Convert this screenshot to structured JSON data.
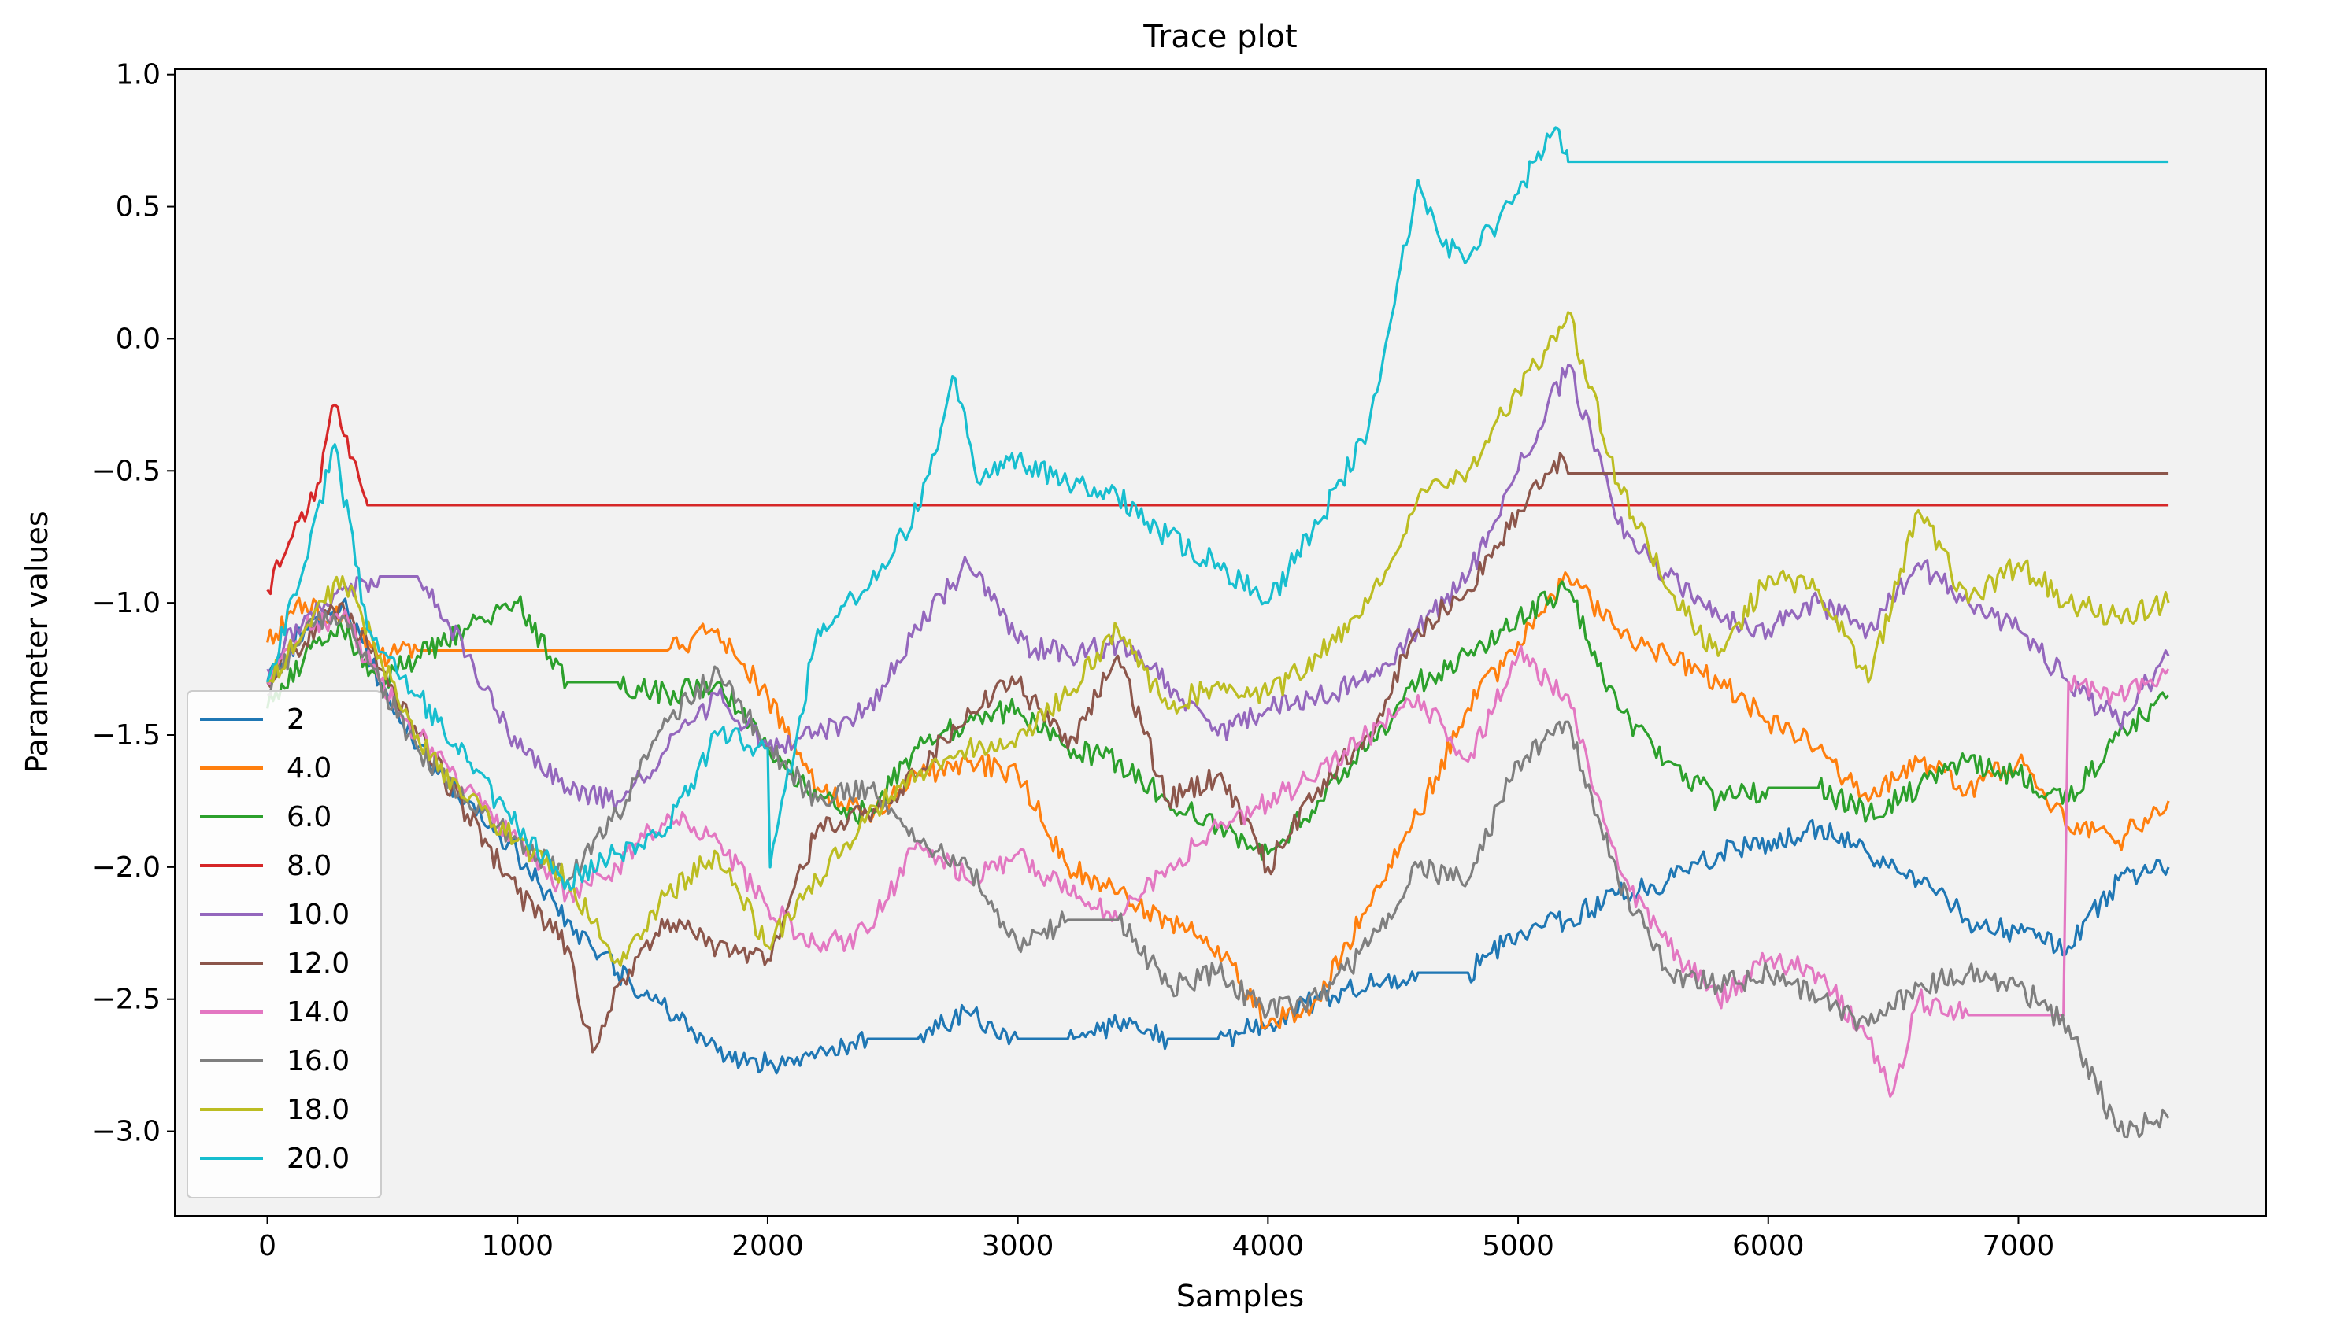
{
  "chart_data": {
    "type": "line",
    "title": "Trace plot",
    "xlabel": "Samples",
    "ylabel": "Parameter values",
    "xlim": [
      -370,
      7990
    ],
    "ylim": [
      -3.32,
      1.02
    ],
    "xticks": [
      0,
      1000,
      2000,
      3000,
      4000,
      5000,
      6000,
      7000
    ],
    "yticks": [
      1.0,
      0.5,
      0.0,
      -0.5,
      -1.0,
      -1.5,
      -2.0,
      -2.5,
      -3.0
    ],
    "xtick_labels": [
      "0",
      "1000",
      "2000",
      "3000",
      "4000",
      "5000",
      "6000",
      "7000"
    ],
    "ytick_labels": [
      "1.0",
      "0.5",
      "0.0",
      "−0.5",
      "−1.0",
      "−1.5",
      "−2.0",
      "−2.5",
      "−3.0"
    ],
    "grid": false,
    "background": "#f2f2f2",
    "legend_position": "lower-left",
    "series": [
      {
        "name": "2",
        "color": "#1f77b4",
        "x": [
          0,
          150,
          300,
          450,
          600,
          800,
          1000,
          1200,
          1400,
          1600,
          1800,
          2000,
          2200,
          2400,
          2600,
          2800,
          3000,
          3200,
          3400,
          3600,
          3800,
          4000,
          4200,
          4400,
          4600,
          4800,
          5000,
          5200,
          5400,
          5600,
          5800,
          6000,
          6200,
          6400,
          6600,
          6800,
          7000,
          7200,
          7400,
          7600
        ],
        "y": [
          -1.3,
          -1.1,
          -1.0,
          -1.3,
          -1.55,
          -1.75,
          -1.95,
          -2.2,
          -2.4,
          -2.55,
          -2.7,
          -2.75,
          -2.7,
          -2.65,
          -2.65,
          -2.55,
          -2.65,
          -2.65,
          -2.6,
          -2.65,
          -2.65,
          -2.6,
          -2.5,
          -2.45,
          -2.4,
          -2.4,
          -2.25,
          -2.2,
          -2.1,
          -2.05,
          -1.95,
          -1.9,
          -1.85,
          -1.95,
          -2.05,
          -2.2,
          -2.25,
          -2.3,
          -2.05,
          -2.0
        ]
      },
      {
        "name": "4.0",
        "color": "#ff7f0e",
        "x": [
          0,
          150,
          300,
          450,
          600,
          800,
          1000,
          1200,
          1400,
          1600,
          1800,
          2000,
          2200,
          2400,
          2600,
          2800,
          3000,
          3200,
          3400,
          3600,
          3800,
          4000,
          4200,
          4400,
          4600,
          4800,
          5000,
          5200,
          5400,
          5600,
          5800,
          6000,
          6200,
          6400,
          6600,
          6800,
          7000,
          7200,
          7400,
          7600
        ],
        "y": [
          -1.15,
          -1.0,
          -1.05,
          -1.2,
          -1.18,
          -1.18,
          -1.18,
          -1.18,
          -1.18,
          -1.18,
          -1.1,
          -1.35,
          -1.7,
          -1.8,
          -1.65,
          -1.6,
          -1.65,
          -2.0,
          -2.1,
          -2.2,
          -2.3,
          -2.6,
          -2.5,
          -2.15,
          -1.8,
          -1.4,
          -1.15,
          -0.9,
          -1.1,
          -1.2,
          -1.3,
          -1.45,
          -1.55,
          -1.75,
          -1.6,
          -1.7,
          -1.6,
          -1.85,
          -1.9,
          -1.75
        ]
      },
      {
        "name": "6.0",
        "color": "#2ca02c",
        "x": [
          0,
          150,
          300,
          450,
          600,
          800,
          1000,
          1200,
          1400,
          1600,
          1800,
          2000,
          2200,
          2400,
          2600,
          2800,
          3000,
          3200,
          3400,
          3600,
          3800,
          4000,
          4200,
          4400,
          4600,
          4800,
          5000,
          5200,
          5400,
          5600,
          5800,
          6000,
          6200,
          6400,
          6600,
          6800,
          7000,
          7200,
          7400,
          7600
        ],
        "y": [
          -1.4,
          -1.2,
          -1.1,
          -1.3,
          -1.2,
          -1.1,
          -1.0,
          -1.3,
          -1.3,
          -1.35,
          -1.3,
          -1.55,
          -1.75,
          -1.8,
          -1.55,
          -1.45,
          -1.4,
          -1.55,
          -1.6,
          -1.75,
          -1.85,
          -1.95,
          -1.75,
          -1.55,
          -1.3,
          -1.2,
          -1.05,
          -0.95,
          -1.4,
          -1.6,
          -1.75,
          -1.7,
          -1.7,
          -1.8,
          -1.7,
          -1.6,
          -1.65,
          -1.75,
          -1.5,
          -1.35
        ]
      },
      {
        "name": "8.0",
        "color": "#d62728",
        "x": [
          0,
          100,
          200,
          270,
          330,
          390,
          400,
          7600
        ],
        "y": [
          -0.95,
          -0.75,
          -0.55,
          -0.25,
          -0.45,
          -0.6,
          -0.63,
          -0.63
        ]
      },
      {
        "name": "10.0",
        "color": "#9467bd",
        "x": [
          0,
          150,
          300,
          450,
          600,
          800,
          1000,
          1200,
          1400,
          1600,
          1800,
          2000,
          2200,
          2400,
          2600,
          2800,
          3000,
          3200,
          3400,
          3600,
          3800,
          4000,
          4200,
          4400,
          4600,
          4800,
          5000,
          5200,
          5400,
          5600,
          5800,
          6000,
          6200,
          6400,
          6600,
          6800,
          7000,
          7200,
          7400,
          7600
        ],
        "y": [
          -1.25,
          -1.05,
          -0.95,
          -0.9,
          -0.9,
          -1.2,
          -1.55,
          -1.7,
          -1.75,
          -1.55,
          -1.35,
          -1.55,
          -1.5,
          -1.4,
          -1.1,
          -0.85,
          -1.15,
          -1.2,
          -1.15,
          -1.3,
          -1.5,
          -1.4,
          -1.35,
          -1.3,
          -1.1,
          -0.9,
          -0.5,
          -0.1,
          -0.7,
          -0.9,
          -1.05,
          -1.1,
          -1.0,
          -1.1,
          -0.85,
          -1.0,
          -1.1,
          -1.3,
          -1.45,
          -1.2
        ]
      },
      {
        "name": "12.0",
        "color": "#8c564b",
        "x": [
          0,
          150,
          300,
          450,
          600,
          800,
          1000,
          1200,
          1300,
          1400,
          1600,
          1800,
          2000,
          2200,
          2400,
          2600,
          2800,
          3000,
          3200,
          3400,
          3600,
          3800,
          4000,
          4200,
          4400,
          4600,
          4800,
          5000,
          5180,
          5200,
          7600
        ],
        "y": [
          -1.3,
          -1.15,
          -1.0,
          -1.25,
          -1.5,
          -1.8,
          -2.1,
          -2.3,
          -2.7,
          -2.45,
          -2.2,
          -2.3,
          -2.35,
          -1.85,
          -1.8,
          -1.65,
          -1.4,
          -1.3,
          -1.55,
          -1.2,
          -1.75,
          -1.65,
          -2.0,
          -1.7,
          -1.5,
          -1.1,
          -0.95,
          -0.65,
          -0.45,
          -0.51,
          -0.51
        ]
      },
      {
        "name": "14.0",
        "color": "#e377c2",
        "x": [
          0,
          150,
          300,
          450,
          600,
          800,
          1000,
          1200,
          1400,
          1600,
          1800,
          2000,
          2200,
          2400,
          2600,
          2800,
          3000,
          3200,
          3400,
          3600,
          3800,
          4000,
          4200,
          4400,
          4600,
          4800,
          5000,
          5200,
          5400,
          5600,
          5800,
          6000,
          6200,
          6400,
          6500,
          6600,
          6800,
          7000,
          7180,
          7200,
          7400,
          7600
        ],
        "y": [
          -1.3,
          -1.1,
          -1.05,
          -1.3,
          -1.5,
          -1.7,
          -1.9,
          -2.1,
          -2.0,
          -1.8,
          -1.9,
          -2.15,
          -2.3,
          -2.25,
          -1.9,
          -2.05,
          -1.95,
          -2.1,
          -2.2,
          -2.0,
          -1.85,
          -1.75,
          -1.65,
          -1.5,
          -1.35,
          -1.6,
          -1.2,
          -1.35,
          -2.0,
          -2.3,
          -2.5,
          -2.35,
          -2.4,
          -2.65,
          -2.85,
          -2.5,
          -2.56,
          -2.56,
          -2.56,
          -1.3,
          -1.35,
          -1.25
        ]
      },
      {
        "name": "16.0",
        "color": "#7f7f7f",
        "x": [
          0,
          150,
          300,
          450,
          600,
          800,
          1000,
          1200,
          1400,
          1600,
          1800,
          2000,
          2200,
          2400,
          2600,
          2800,
          3000,
          3200,
          3400,
          3600,
          3800,
          4000,
          4200,
          4400,
          4600,
          4800,
          5000,
          5200,
          5400,
          5600,
          5800,
          6000,
          6200,
          6400,
          6600,
          6800,
          7000,
          7200,
          7400,
          7600
        ],
        "y": [
          -1.35,
          -1.1,
          -1.05,
          -1.3,
          -1.55,
          -1.75,
          -1.9,
          -2.05,
          -1.8,
          -1.45,
          -1.25,
          -1.55,
          -1.75,
          -1.7,
          -1.9,
          -2.0,
          -2.3,
          -2.2,
          -2.2,
          -2.45,
          -2.4,
          -2.55,
          -2.5,
          -2.3,
          -2.0,
          -2.05,
          -1.6,
          -1.45,
          -2.05,
          -2.4,
          -2.45,
          -2.4,
          -2.5,
          -2.6,
          -2.45,
          -2.4,
          -2.45,
          -2.6,
          -3.0,
          -2.95
        ]
      },
      {
        "name": "18.0",
        "color": "#bcbd22",
        "x": [
          0,
          150,
          300,
          450,
          600,
          800,
          1000,
          1200,
          1400,
          1600,
          1800,
          2000,
          2200,
          2400,
          2600,
          2800,
          3000,
          3200,
          3400,
          3600,
          3800,
          4000,
          4200,
          4400,
          4600,
          4800,
          5000,
          5200,
          5400,
          5600,
          5800,
          6000,
          6200,
          6400,
          6600,
          6800,
          7000,
          7200,
          7400,
          7600
        ],
        "y": [
          -1.3,
          -1.1,
          -0.9,
          -1.2,
          -1.5,
          -1.75,
          -1.9,
          -2.05,
          -2.35,
          -2.1,
          -1.95,
          -2.3,
          -2.05,
          -1.8,
          -1.65,
          -1.55,
          -1.5,
          -1.35,
          -1.1,
          -1.4,
          -1.3,
          -1.35,
          -1.2,
          -1.0,
          -0.6,
          -0.5,
          -0.2,
          0.1,
          -0.55,
          -0.95,
          -1.2,
          -0.9,
          -0.95,
          -1.3,
          -0.65,
          -1.0,
          -0.85,
          -1.0,
          -1.05,
          -1.0
        ]
      },
      {
        "name": "20.0",
        "color": "#17becf",
        "x": [
          0,
          150,
          270,
          400,
          600,
          800,
          1000,
          1200,
          1400,
          1600,
          1800,
          2000,
          2010,
          2200,
          2400,
          2600,
          2750,
          2850,
          3000,
          3200,
          3400,
          3600,
          3800,
          4000,
          4200,
          4400,
          4600,
          4700,
          4800,
          5000,
          5150,
          5190,
          5200,
          7600
        ],
        "y": [
          -1.3,
          -0.85,
          -0.4,
          -1.1,
          -1.35,
          -1.6,
          -1.85,
          -2.05,
          -1.95,
          -1.85,
          -1.5,
          -1.55,
          -2.0,
          -1.1,
          -0.95,
          -0.65,
          -0.15,
          -0.55,
          -0.45,
          -0.55,
          -0.6,
          -0.75,
          -0.85,
          -1.0,
          -0.7,
          -0.35,
          0.6,
          0.35,
          0.3,
          0.55,
          0.8,
          0.7,
          0.67,
          0.67
        ]
      }
    ]
  }
}
